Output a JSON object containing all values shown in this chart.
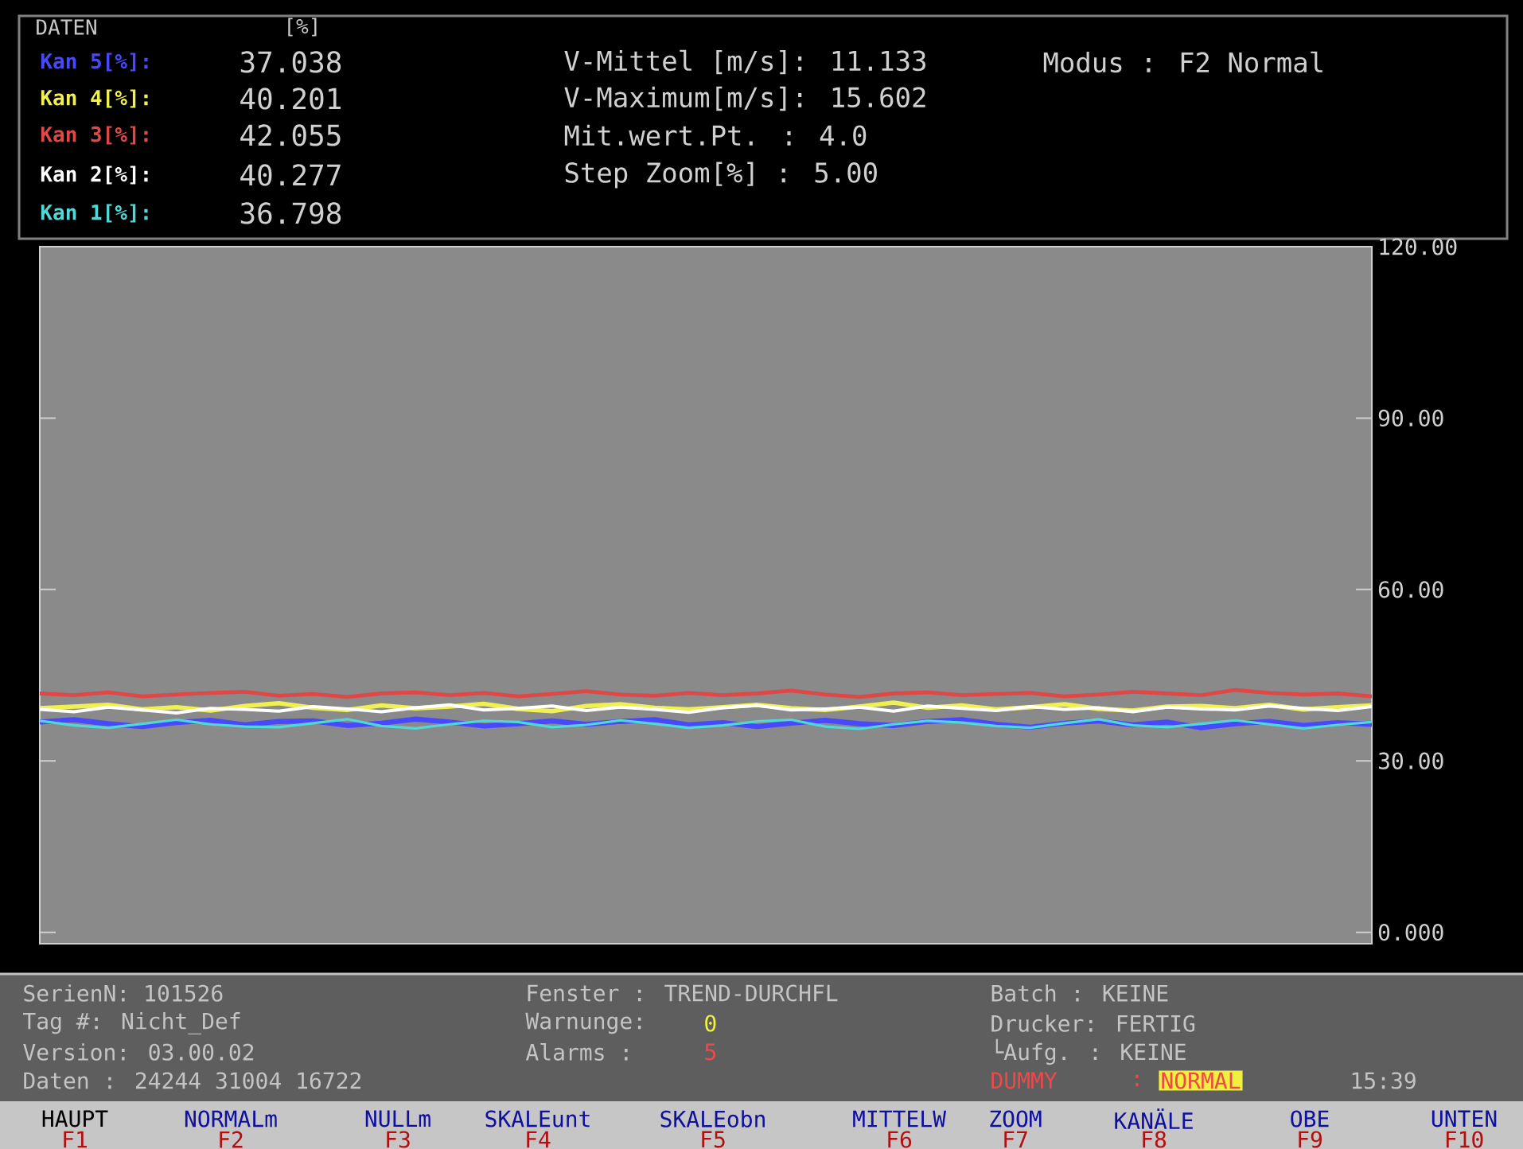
{
  "chart_data": {
    "type": "line",
    "categories": [
      null,
      null,
      null,
      null,
      null,
      null,
      null,
      null,
      null,
      null,
      null,
      null,
      null,
      null,
      null,
      null,
      null,
      null,
      null,
      null,
      null,
      null,
      null,
      null,
      null,
      null,
      null,
      null,
      null,
      null,
      null,
      null,
      null,
      null,
      null,
      null,
      null,
      null,
      null,
      null
    ],
    "series": [
      {
        "name": "Kan 5[%]:",
        "color": "#4848ff",
        "values": [
          36.8,
          37.2,
          36.5,
          36.0,
          36.7,
          37.1,
          36.3,
          36.9,
          37.0,
          36.2,
          36.6,
          37.3,
          36.8,
          36.1,
          36.5,
          37.0,
          36.4,
          36.9,
          37.2,
          36.3,
          36.7,
          36.0,
          36.6,
          37.1,
          36.5,
          36.2,
          36.9,
          37.2,
          36.4,
          35.9,
          36.6,
          37.0,
          36.3,
          36.8,
          35.8,
          36.5,
          36.9,
          36.2,
          36.7,
          36.4
        ]
      },
      {
        "name": "Kan 4[%]:",
        "color": "#f0f050",
        "values": [
          39.2,
          39.5,
          39.8,
          39.0,
          39.4,
          38.8,
          39.6,
          40.1,
          39.3,
          38.9,
          39.7,
          39.2,
          39.5,
          40.0,
          39.1,
          38.7,
          39.6,
          39.9,
          39.3,
          39.0,
          39.4,
          39.8,
          39.2,
          38.9,
          39.5,
          40.2,
          39.3,
          39.7,
          39.0,
          39.4,
          39.9,
          39.1,
          38.8,
          39.5,
          39.6,
          39.2,
          39.8,
          39.0,
          39.4,
          39.7
        ]
      },
      {
        "name": "Kan 3[%]:",
        "color": "#e04848",
        "values": [
          41.8,
          41.5,
          42.0,
          41.3,
          41.6,
          41.9,
          42.1,
          41.4,
          41.7,
          41.2,
          41.8,
          42.0,
          41.5,
          41.9,
          41.3,
          41.7,
          42.2,
          41.6,
          41.4,
          41.9,
          41.5,
          41.8,
          42.3,
          41.6,
          41.2,
          41.8,
          42.0,
          41.5,
          41.7,
          41.9,
          41.3,
          41.6,
          42.1,
          41.8,
          41.5,
          42.4,
          41.9,
          41.6,
          41.8,
          41.3
        ]
      },
      {
        "name": "Kan 2[%]:",
        "color": "#ffffff",
        "values": [
          39.0,
          38.6,
          39.4,
          38.9,
          38.4,
          39.2,
          39.0,
          38.7,
          39.5,
          39.1,
          38.6,
          39.3,
          39.8,
          38.9,
          39.2,
          39.6,
          38.8,
          39.4,
          39.0,
          38.5,
          39.3,
          39.7,
          38.9,
          39.1,
          39.4,
          38.7,
          39.6,
          39.2,
          38.8,
          39.5,
          39.0,
          39.3,
          38.6,
          39.4,
          39.1,
          38.9,
          39.6,
          39.2,
          38.8,
          39.5
        ]
      },
      {
        "name": "Kan 1[%]:",
        "color": "#50d8d8",
        "values": [
          37.0,
          36.2,
          35.8,
          36.5,
          37.2,
          36.4,
          36.0,
          35.9,
          36.6,
          37.3,
          36.1,
          35.7,
          36.4,
          37.0,
          36.8,
          35.9,
          36.3,
          37.1,
          36.5,
          35.8,
          36.2,
          36.9,
          37.2,
          36.0,
          35.6,
          36.4,
          37.0,
          36.7,
          36.1,
          35.8,
          36.6,
          37.3,
          36.2,
          35.9,
          36.5,
          37.1,
          36.4,
          35.7,
          36.3,
          36.8
        ]
      }
    ],
    "ylim": [
      -2,
      120
    ],
    "yticks": [
      {
        "value": 0,
        "label": "0.000"
      },
      {
        "value": 30,
        "label": "30.00"
      },
      {
        "value": 60,
        "label": "60.00"
      },
      {
        "value": 90,
        "label": "90.00"
      },
      {
        "value": 120,
        "label": "120.00"
      }
    ],
    "annotations": [
      "DATEN",
      "[%]",
      "37.038",
      "40.201",
      "42.055",
      "40.277",
      "36.798",
      "V-Mittel [m/s]: 11.133",
      "V-Maximum[m/s]: 15.602",
      "Mit.wert.Pt.  :    4.0",
      "Step  Zoom[%] :   5.00",
      "Modus  : F2 Normal",
      "SerienN: 101526",
      "Tag   #: Nicht_Def",
      "Version: 03.00.02",
      "Daten  : 24244 31004 16722",
      "Fenster : TREND-DURCHFL",
      "Warnunge:",
      "0",
      "Alarms   :",
      "5",
      "Batch   : KEINE",
      "Drucker: FERTIG",
      "└Aufg.  : KEINE",
      "DUMMY",
      ":",
      "NORMAL",
      "15:39",
      "HAUPT",
      "NORMALm",
      "NULLm",
      "SKALEunt",
      "SKALEobn",
      "MITTELW",
      "ZOOM",
      "KANÄLE",
      "OBE",
      "UNTEN",
      "F1",
      "F2",
      "F3",
      "F4",
      "F5",
      "F6",
      "F7",
      "F8",
      "F9",
      "F10"
    ]
  }
}
